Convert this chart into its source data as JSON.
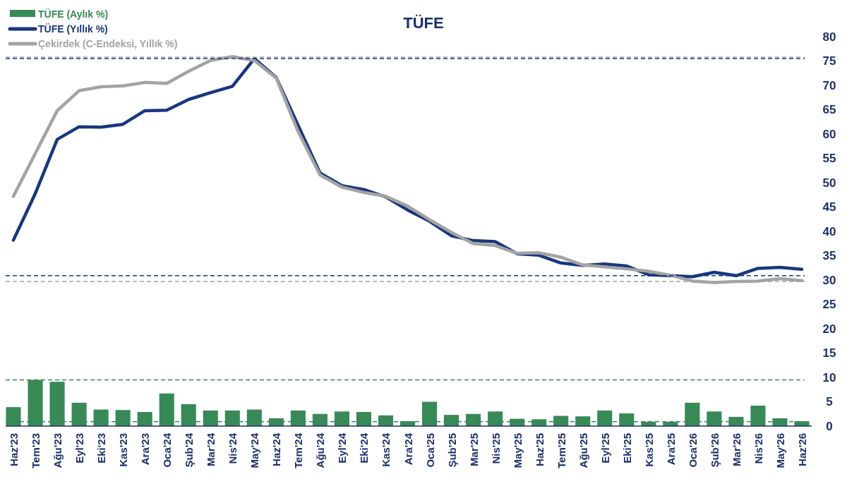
{
  "chart_data": {
    "type": "line",
    "title": "TÜFE",
    "categories": [
      "Haz'23",
      "Tem'23",
      "Ağu'23",
      "Eyl'23",
      "Eki'23",
      "Kas'23",
      "Ara'23",
      "Oca'24",
      "Şub'24",
      "Mar'24",
      "Nis'24",
      "May'24",
      "Haz'24",
      "Tem'24",
      "Ağu'24",
      "Eyl'24",
      "Eki'24",
      "Kas'24",
      "Ara'24",
      "Oca'25",
      "Şub'25",
      "Mar'25",
      "Nis'25",
      "May'25",
      "Haz'25",
      "Tem'25",
      "Ağu'25",
      "Eyl'25",
      "Eki'25",
      "Kas'25",
      "Ara'25",
      "Oca'26",
      "Şub'26",
      "Mar'26",
      "Nis'26",
      "May'26",
      "Haz'26"
    ],
    "series": [
      {
        "name": "TÜFE (Aylık %)",
        "type": "bar",
        "color": "#378a56",
        "values": [
          3.9,
          9.5,
          9.1,
          4.8,
          3.4,
          3.3,
          2.9,
          6.7,
          4.5,
          3.2,
          3.2,
          3.4,
          1.6,
          3.2,
          2.5,
          3.0,
          2.9,
          2.2,
          1.0,
          5.0,
          2.3,
          2.5,
          3.0,
          1.5,
          1.4,
          2.1,
          2.0,
          3.2,
          2.6,
          0.9,
          0.9,
          4.8,
          3.0,
          1.9,
          4.2,
          1.6,
          1.0
        ]
      },
      {
        "name": "TÜFE (Yıllık %)",
        "color": "#17377f",
        "values": [
          38.2,
          47.8,
          58.9,
          61.5,
          61.4,
          62.0,
          64.8,
          64.9,
          67.1,
          68.5,
          69.8,
          75.5,
          71.6,
          61.8,
          52.0,
          49.4,
          48.6,
          47.1,
          44.4,
          42.1,
          39.1,
          38.1,
          37.9,
          35.4,
          35.1,
          33.5,
          33.0,
          33.3,
          32.9,
          31.1,
          30.9,
          30.7,
          31.6,
          30.9,
          32.4,
          32.6,
          32.2
        ]
      },
      {
        "name": "Çekirdek (C-Endeksi, Yıllık %)",
        "color": "#a3a3a3",
        "values": [
          47.2,
          56.0,
          64.8,
          68.9,
          69.7,
          69.9,
          70.6,
          70.4,
          72.9,
          75.1,
          75.9,
          75.1,
          71.5,
          60.5,
          51.6,
          49.1,
          48.0,
          47.2,
          45.2,
          42.4,
          39.8,
          37.5,
          37.1,
          35.5,
          35.6,
          34.7,
          33.1,
          32.7,
          32.3,
          31.8,
          31.0,
          29.8,
          29.5,
          29.7,
          29.8,
          30.3,
          29.9
        ]
      }
    ],
    "ylim": [
      0,
      80
    ],
    "yticks": [
      0,
      5,
      10,
      15,
      20,
      25,
      30,
      35,
      40,
      45,
      50,
      55,
      60,
      65,
      70,
      75,
      80
    ],
    "ref_lines": [
      {
        "axis": "y",
        "value": 75.8,
        "color": "#a3a3a3",
        "line_style": "dashed"
      },
      {
        "axis": "y",
        "value": 75.5,
        "color": "#17377f",
        "line_style": "dashed"
      },
      {
        "axis": "y",
        "value": 9.5,
        "color": "#378a56",
        "line_style": "dashed"
      },
      {
        "axis": "y",
        "value": 30.9,
        "color": "#17377f",
        "line_style": "dashed"
      },
      {
        "axis": "y",
        "value": 29.7,
        "color": "#a3a3a3",
        "line_style": "dashed"
      },
      {
        "axis": "y",
        "value": 0.9,
        "color": "#378a56",
        "line_style": "dashed"
      }
    ],
    "grid": false,
    "legend": "top left",
    "line_style": "solid",
    "marker": "none"
  }
}
